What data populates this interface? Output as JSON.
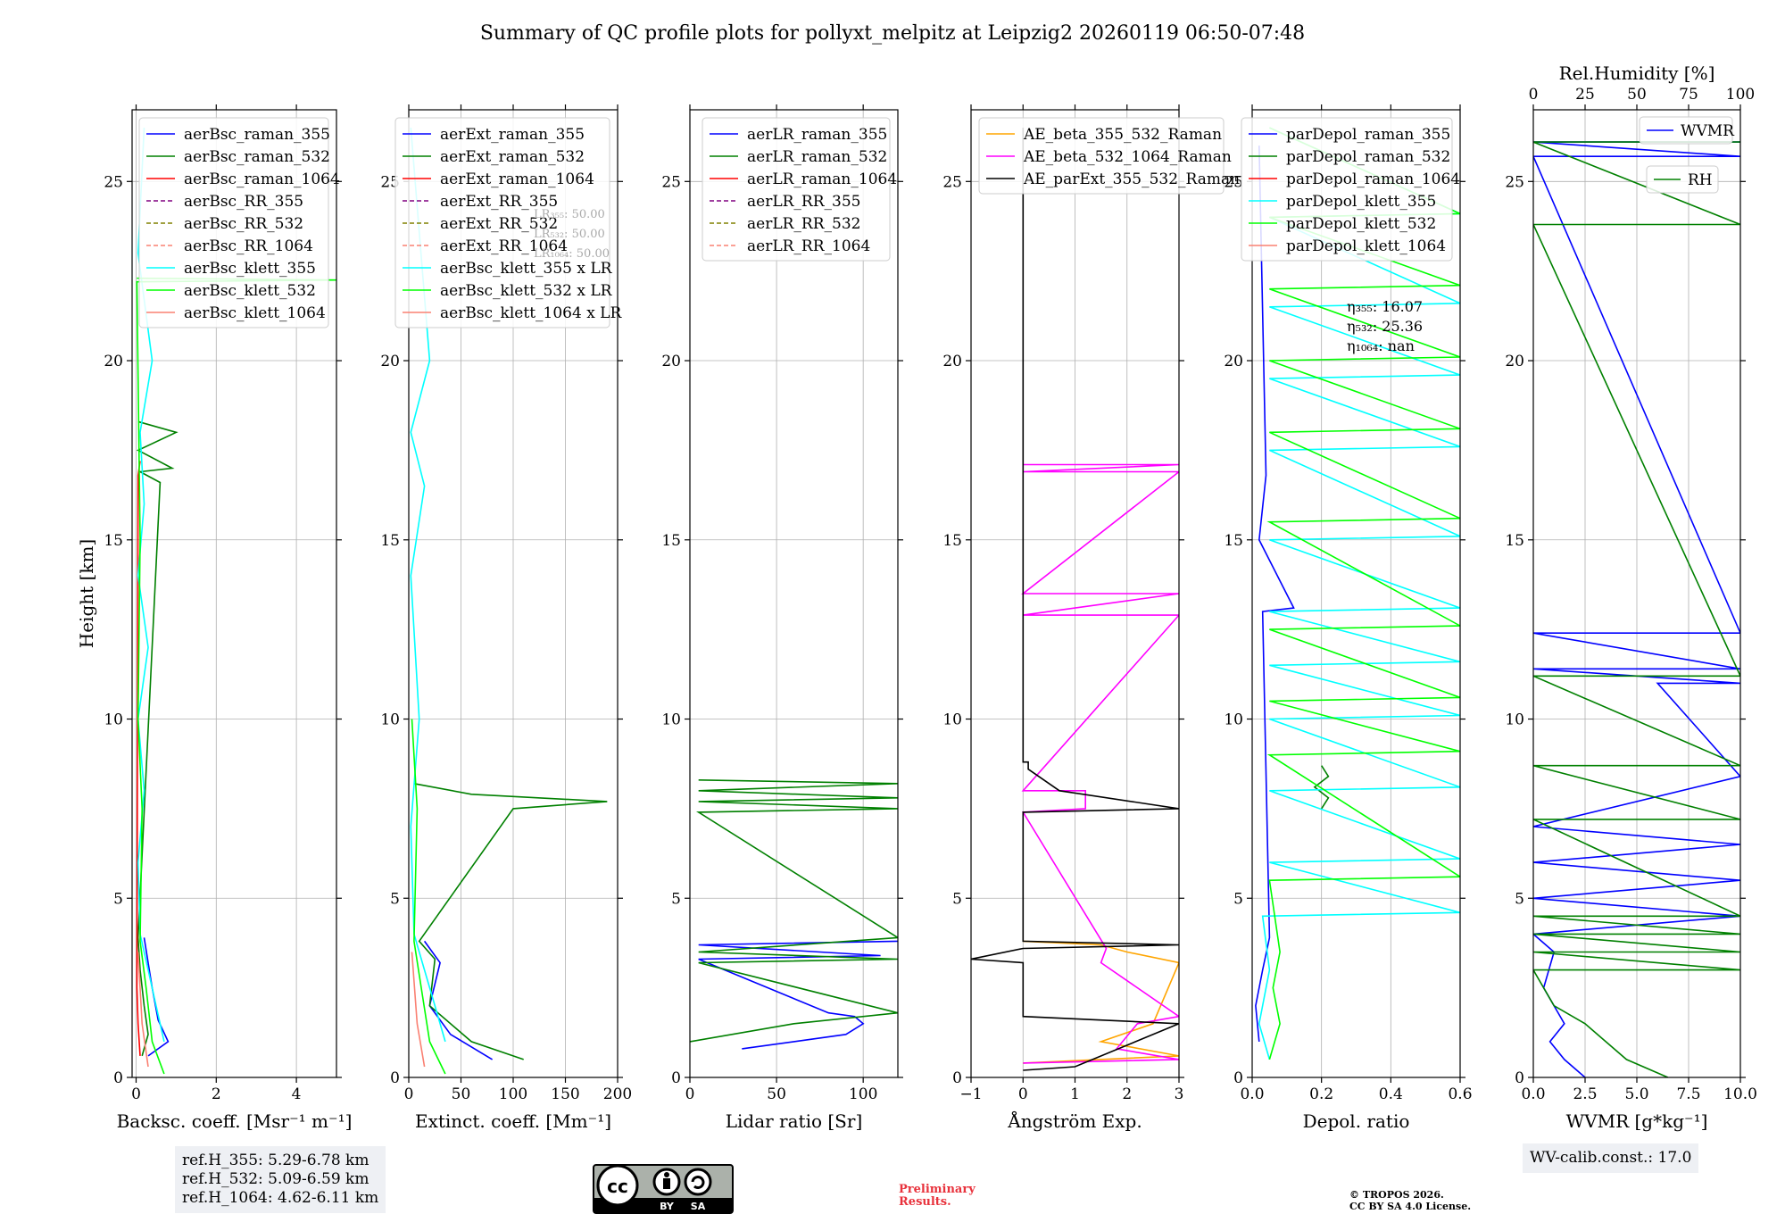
{
  "title": "Summary of QC profile plots for pollyxt_melpitz at Leipzig2 20260119 06:50-07:48",
  "chart_data": [
    {
      "type": "line",
      "xlabel": "Backsc. coeff. [Msr⁻¹ m⁻¹]",
      "ylabel": "Height [km]",
      "xlim": [
        -0.1,
        5
      ],
      "ylim": [
        0,
        27
      ],
      "xticks": [
        0,
        2,
        4
      ],
      "xtick_labels": [
        "0",
        "2",
        "4"
      ],
      "yticks": [
        0,
        5,
        10,
        15,
        20,
        25
      ],
      "ytick_labels": [
        "0",
        "5",
        "10",
        "15",
        "20",
        "25"
      ],
      "grid": true,
      "legend_position": "top-right",
      "series": [
        {
          "name": "aerBsc_raman_355",
          "color": "#0000ff",
          "dash": "",
          "x": [
            0.3,
            0.8,
            0.55,
            0.4,
            0.3,
            0.2
          ],
          "y": [
            0.6,
            1.0,
            1.6,
            2.5,
            3.2,
            3.9
          ]
        },
        {
          "name": "aerBsc_raman_532",
          "color": "#008000",
          "dash": "",
          "x": [
            0.15,
            0.3,
            0.2,
            0.1,
            0.05,
            0.6,
            0.1,
            0.9,
            0.05,
            1.0,
            0.05
          ],
          "y": [
            0.6,
            1.2,
            2.0,
            3.0,
            3.9,
            16.6,
            16.9,
            17.0,
            17.5,
            18.0,
            18.3
          ]
        },
        {
          "name": "aerBsc_raman_1064",
          "color": "#ff0000",
          "dash": "",
          "x": [
            0.1,
            0.05,
            0.02,
            0.05,
            0.1
          ],
          "y": [
            0.6,
            1.5,
            2.5,
            16.8,
            17.2
          ]
        },
        {
          "name": "aerBsc_RR_355",
          "color": "#800080",
          "dash": "5,3",
          "x": [],
          "y": []
        },
        {
          "name": "aerBsc_RR_532",
          "color": "#808000",
          "dash": "5,3",
          "x": [],
          "y": []
        },
        {
          "name": "aerBsc_RR_1064",
          "color": "#fa8072",
          "dash": "5,3",
          "x": [],
          "y": []
        },
        {
          "name": "aerBsc_klett_355",
          "color": "#00ffff",
          "dash": "",
          "x": [
            0.7,
            0.5,
            0.3,
            0.1,
            0.05,
            0.2,
            0.05,
            0.3,
            0.05,
            0.2,
            0.1,
            0.4,
            0.05,
            0.2
          ],
          "y": [
            1.0,
            2.0,
            3.0,
            4.0,
            6.0,
            8.0,
            10.0,
            12.0,
            14.0,
            16.0,
            18.0,
            20.0,
            23.0,
            26.5
          ]
        },
        {
          "name": "aerBsc_klett_532",
          "color": "#00ff00",
          "dash": "",
          "x": [
            0.7,
            0.4,
            0.25,
            0.1,
            0.15,
            0.05,
            0.1,
            0.02,
            5.0,
            0.02
          ],
          "y": [
            0.1,
            1.0,
            2.5,
            3.8,
            7.5,
            10.0,
            15.0,
            22.2,
            22.25,
            22.3
          ]
        },
        {
          "name": "aerBsc_klett_1064",
          "color": "#fa8072",
          "dash": "",
          "x": [
            0.3,
            0.15,
            0.05
          ],
          "y": [
            0.3,
            1.5,
            3.5
          ]
        }
      ]
    },
    {
      "type": "line",
      "xlabel": "Extinct. coeff. [Mm⁻¹]",
      "xlim": [
        0,
        200
      ],
      "ylim": [
        0,
        27
      ],
      "xticks": [
        0,
        50,
        100,
        150,
        200
      ],
      "xtick_labels": [
        "0",
        "50",
        "100",
        "150",
        "200"
      ],
      "yticks": [
        0,
        5,
        10,
        15,
        20,
        25
      ],
      "ytick_labels": [
        "0",
        "5",
        "10",
        "15",
        "20",
        "25"
      ],
      "grid": true,
      "legend_position": "top-right",
      "annotation": [
        "LR₃₅₅: 50.00",
        "LR₅₃₂: 50.00",
        "LR₁₀₆₄: 50.00"
      ],
      "series": [
        {
          "name": "aerExt_raman_355",
          "color": "#0000ff",
          "dash": "",
          "x": [
            80,
            40,
            20,
            30,
            15
          ],
          "y": [
            0.5,
            1.2,
            2.0,
            3.2,
            3.8
          ]
        },
        {
          "name": "aerExt_raman_532",
          "color": "#008000",
          "dash": "",
          "x": [
            110,
            60,
            20,
            25,
            10,
            100,
            190,
            60,
            5
          ],
          "y": [
            0.5,
            1.0,
            2.0,
            3.3,
            3.8,
            7.5,
            7.7,
            7.9,
            8.2
          ]
        },
        {
          "name": "aerExt_raman_1064",
          "color": "#ff0000",
          "dash": "",
          "x": [],
          "y": []
        },
        {
          "name": "aerExt_RR_355",
          "color": "#800080",
          "dash": "5,3",
          "x": [],
          "y": []
        },
        {
          "name": "aerExt_RR_532",
          "color": "#808000",
          "dash": "5,3",
          "x": [],
          "y": []
        },
        {
          "name": "aerExt_RR_1064",
          "color": "#fa8072",
          "dash": "5,3",
          "x": [],
          "y": []
        },
        {
          "name": "aerBsc_klett_355 x LR",
          "color": "#00ffff",
          "dash": "",
          "x": [
            35,
            25,
            15,
            5,
            2,
            10,
            2,
            15,
            2,
            20,
            2
          ],
          "y": [
            1.0,
            2.0,
            3.0,
            4.0,
            7.0,
            10.0,
            14.0,
            16.5,
            18.0,
            20.0,
            26.5
          ]
        },
        {
          "name": "aerBsc_klett_532 x LR",
          "color": "#00ff00",
          "dash": "",
          "x": [
            35,
            20,
            12,
            5,
            8,
            3
          ],
          "y": [
            0.1,
            1.0,
            2.5,
            3.8,
            7.5,
            10.0
          ]
        },
        {
          "name": "aerBsc_klett_1064 x LR",
          "color": "#fa8072",
          "dash": "",
          "x": [
            15,
            8,
            3
          ],
          "y": [
            0.3,
            1.5,
            3.5
          ]
        }
      ]
    },
    {
      "type": "line",
      "xlabel": "Lidar ratio [Sr]",
      "xlim": [
        0,
        120
      ],
      "ylim": [
        0,
        27
      ],
      "xticks": [
        0,
        50,
        100
      ],
      "xtick_labels": [
        "0",
        "50",
        "100"
      ],
      "yticks": [
        0,
        5,
        10,
        15,
        20,
        25
      ],
      "ytick_labels": [
        "0",
        "5",
        "10",
        "15",
        "20",
        "25"
      ],
      "grid": true,
      "legend_position": "top-right",
      "series": [
        {
          "name": "aerLR_raman_355",
          "color": "#0000ff",
          "dash": "",
          "x": [
            30,
            60,
            90,
            100,
            95,
            80,
            5,
            110,
            5,
            120
          ],
          "y": [
            0.8,
            1.0,
            1.2,
            1.5,
            1.7,
            1.8,
            3.3,
            3.4,
            3.7,
            3.8
          ]
        },
        {
          "name": "aerLR_raman_532",
          "color": "#008000",
          "dash": "",
          "x": [
            0,
            60,
            120,
            5,
            120,
            5,
            120,
            5,
            120,
            5,
            120,
            5,
            120,
            5
          ],
          "y": [
            1.0,
            1.5,
            1.8,
            3.2,
            3.3,
            3.5,
            3.9,
            7.4,
            7.5,
            7.7,
            7.8,
            8.0,
            8.2,
            8.3
          ]
        },
        {
          "name": "aerLR_raman_1064",
          "color": "#ff0000",
          "dash": "",
          "x": [],
          "y": []
        },
        {
          "name": "aerLR_RR_355",
          "color": "#800080",
          "dash": "5,3",
          "x": [],
          "y": []
        },
        {
          "name": "aerLR_RR_532",
          "color": "#808000",
          "dash": "5,3",
          "x": [],
          "y": []
        },
        {
          "name": "aerLR_RR_1064",
          "color": "#fa8072",
          "dash": "5,3",
          "x": [],
          "y": []
        }
      ]
    },
    {
      "type": "line",
      "xlabel": "Ångström Exp.",
      "xlim": [
        -1,
        3
      ],
      "ylim": [
        0,
        27
      ],
      "xticks": [
        -1,
        0,
        1,
        2,
        3
      ],
      "xtick_labels": [
        "−1",
        "0",
        "1",
        "2",
        "3"
      ],
      "yticks": [
        0,
        5,
        10,
        15,
        20,
        25
      ],
      "ytick_labels": [
        "0",
        "5",
        "10",
        "15",
        "20",
        "25"
      ],
      "grid": true,
      "legend_position": "top-left",
      "series": [
        {
          "name": "AE_beta_355_532_Raman",
          "color": "#ffa500",
          "dash": "",
          "x": [
            0,
            3,
            1.5,
            2.5,
            3,
            2.0,
            1.5,
            0
          ],
          "y": [
            0.4,
            0.6,
            1.0,
            1.5,
            3.2,
            3.5,
            3.7,
            3.8
          ]
        },
        {
          "name": "AE_beta_532_1064_Raman",
          "color": "#ff00ff",
          "dash": "",
          "x": [
            0,
            3,
            1.8,
            2.2,
            3,
            1.5,
            1.6,
            0,
            1.2,
            1.2,
            0,
            3,
            0,
            3,
            0,
            3,
            0,
            3,
            0
          ],
          "y": [
            0.4,
            0.5,
            0.8,
            1.5,
            1.7,
            3.2,
            3.6,
            7.4,
            7.5,
            8.0,
            8.0,
            12.9,
            12.9,
            13.5,
            13.5,
            16.9,
            16.9,
            17.1,
            17.1
          ]
        },
        {
          "name": "AE_parExt_355_532_Raman",
          "color": "#000000",
          "dash": "",
          "x": [
            0,
            1,
            3,
            0,
            0,
            -1,
            0,
            3,
            0,
            0,
            3,
            0.7,
            0.1,
            0.1,
            0,
            0
          ],
          "y": [
            0.2,
            0.3,
            1.5,
            1.7,
            3.2,
            3.3,
            3.6,
            3.7,
            3.8,
            7.4,
            7.5,
            8.0,
            8.6,
            8.8,
            8.8,
            26.5
          ]
        }
      ]
    },
    {
      "type": "line",
      "xlabel": "Depol. ratio",
      "xlim": [
        0,
        0.6
      ],
      "ylim": [
        0,
        27
      ],
      "xticks": [
        0,
        0.2,
        0.4,
        0.6
      ],
      "xtick_labels": [
        "0.0",
        "0.2",
        "0.4",
        "0.6"
      ],
      "yticks": [
        0,
        5,
        10,
        15,
        20,
        25
      ],
      "ytick_labels": [
        "0",
        "5",
        "10",
        "15",
        "20",
        "25"
      ],
      "grid": true,
      "legend_position": "top-right",
      "annotation": [
        "η₃₅₅: 16.07",
        "η₅₃₂: 25.36",
        "η₁₀₆₄: nan"
      ],
      "series": [
        {
          "name": "parDepol_raman_355",
          "color": "#0000ff",
          "dash": "",
          "x": [
            0.02,
            0.01,
            0.03,
            0.05,
            0.03,
            0.12,
            0.02,
            0.04,
            0.02
          ],
          "y": [
            1.0,
            2.0,
            3.0,
            3.9,
            13.0,
            13.1,
            15.0,
            16.8,
            26.0
          ]
        },
        {
          "name": "parDepol_raman_532",
          "color": "#008000",
          "dash": "",
          "x": [
            0.2,
            0.22,
            0.18,
            0.22,
            0.2
          ],
          "y": [
            7.5,
            7.8,
            8.1,
            8.4,
            8.7
          ]
        },
        {
          "name": "parDepol_raman_1064",
          "color": "#ff0000",
          "dash": "",
          "x": [],
          "y": []
        },
        {
          "name": "parDepol_klett_355",
          "color": "#00ffff",
          "dash": "",
          "x": [
            0.05,
            0.02,
            0.05,
            0.03,
            0.6,
            0.05,
            0.6,
            0.05,
            0.6,
            0.05,
            0.6,
            0.05,
            0.6,
            0.05,
            0.6,
            0.05,
            0.6,
            0.05,
            0.6,
            0.05,
            0.6,
            0.05,
            0.6,
            0.05,
            0.6,
            0.05
          ],
          "y": [
            0.5,
            1.5,
            3.0,
            4.5,
            4.6,
            6.0,
            6.1,
            8.0,
            8.1,
            10.0,
            10.1,
            11.5,
            11.6,
            13.0,
            13.1,
            15.0,
            15.1,
            17.5,
            17.6,
            19.5,
            19.6,
            21.5,
            21.6,
            24.0,
            24.1,
            26.5
          ]
        },
        {
          "name": "parDepol_klett_532",
          "color": "#00ff00",
          "dash": "",
          "x": [
            0.05,
            0.08,
            0.06,
            0.08,
            0.05,
            0.6,
            0.05,
            0.6,
            0.05,
            0.6,
            0.05,
            0.6,
            0.05,
            0.6,
            0.05,
            0.6,
            0.05,
            0.6,
            0.05,
            0.6,
            0.05,
            0.6,
            0.05
          ],
          "y": [
            0.5,
            1.5,
            2.5,
            3.5,
            5.5,
            5.6,
            9.0,
            9.1,
            10.5,
            10.6,
            12.5,
            12.6,
            15.5,
            15.6,
            18.0,
            18.1,
            20.0,
            20.1,
            22.0,
            22.1,
            24.0,
            24.1,
            26.5
          ]
        },
        {
          "name": "parDepol_klett_1064",
          "color": "#fa8072",
          "dash": "",
          "x": [],
          "y": []
        }
      ]
    },
    {
      "type": "line",
      "xlabel": "WVMR [g*kg⁻¹]",
      "top_xlabel": "Rel.Humidity [%]",
      "xlim": [
        0,
        10
      ],
      "top_xlim": [
        0,
        100
      ],
      "ylim": [
        0,
        27
      ],
      "xticks": [
        0,
        2.5,
        5,
        7.5,
        10
      ],
      "xtick_labels": [
        "0.0",
        "2.5",
        "5.0",
        "7.5",
        "10.0"
      ],
      "top_xticks": [
        0,
        25,
        50,
        75,
        100
      ],
      "top_xtick_labels": [
        "0",
        "25",
        "50",
        "75",
        "100"
      ],
      "yticks": [
        0,
        5,
        10,
        15,
        20,
        25
      ],
      "ytick_labels": [
        "0",
        "5",
        "10",
        "15",
        "20",
        "25"
      ],
      "grid": true,
      "legend_position": "top-right",
      "series": [
        {
          "name": "WVMR",
          "color": "#0000ff",
          "dash": "",
          "x": [
            2.5,
            1.5,
            0.8,
            1.5,
            0.5,
            1.0,
            0.0,
            10,
            0.0,
            10,
            0.0,
            10,
            0.0,
            10,
            6.0,
            10,
            0.0,
            10,
            0.0,
            10,
            0.0,
            10,
            0.0,
            10
          ],
          "y": [
            0.0,
            0.5,
            1.0,
            1.5,
            2.5,
            3.5,
            4.0,
            4.5,
            5.0,
            5.5,
            6.0,
            6.5,
            7.0,
            8.4,
            11.0,
            11.0,
            11.4,
            11.4,
            12.4,
            12.4,
            25.7,
            25.7,
            26.1,
            26.1
          ]
        },
        {
          "name": "RH",
          "color": "#008000",
          "dash": "",
          "x": [
            6.5,
            4.5,
            3.5,
            2.5,
            1.0,
            0.0,
            10,
            0.0,
            10,
            0.0,
            10,
            0.0,
            10,
            0.0,
            10,
            0.0,
            10,
            0.0,
            10,
            0.0,
            10,
            0.0,
            10
          ],
          "y": [
            0.0,
            0.5,
            1.0,
            1.5,
            2.0,
            3.0,
            3.0,
            3.5,
            3.5,
            4.0,
            4.0,
            4.5,
            4.5,
            7.2,
            7.2,
            8.7,
            8.7,
            11.2,
            11.2,
            23.8,
            23.8,
            26.1,
            26.1
          ]
        }
      ]
    }
  ],
  "info_boxes": {
    "ref_heights": [
      "ref.H_355: 5.29-6.78 km",
      "ref.H_532: 5.09-6.59 km",
      "ref.H_1064: 4.62-6.11 km"
    ],
    "wv_calib": "WV-calib.const.: 17.0"
  },
  "footer": {
    "cc_logo_text": [
      "cc",
      "BY",
      "SA"
    ],
    "preliminary": [
      "Preliminary",
      "Results."
    ],
    "copyright": [
      "© TROPOS 2026.",
      "CC BY SA 4.0 License."
    ]
  },
  "colors": {
    "blue": "#0000ff",
    "green": "#008000",
    "red": "#ff0000",
    "cyan": "#00ffff",
    "lime": "#00ff00",
    "salmon": "#fa8072",
    "preliminary": "#e8323c"
  }
}
